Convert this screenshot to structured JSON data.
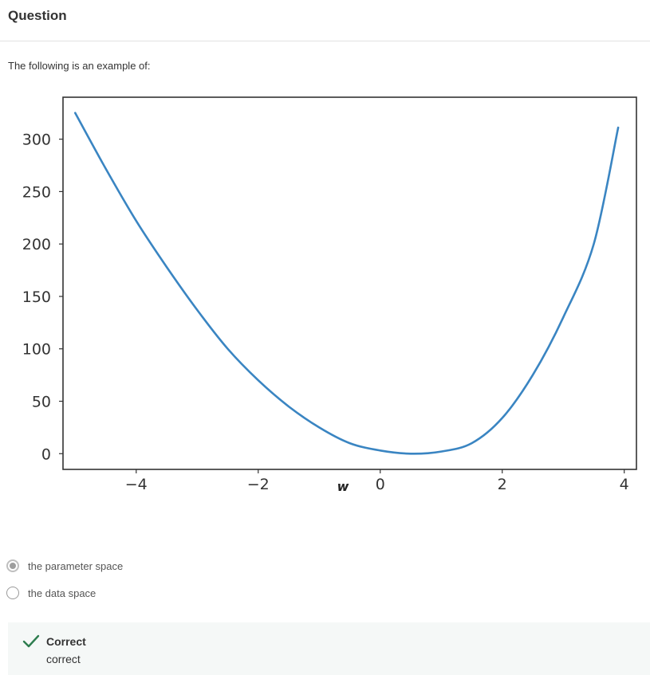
{
  "header": {
    "title": "Question"
  },
  "question": {
    "prompt": "The following is an example of:"
  },
  "options": [
    {
      "label": "the parameter space",
      "selected": true
    },
    {
      "label": "the data space",
      "selected": false
    }
  ],
  "feedback": {
    "status": "Correct",
    "message": "correct",
    "icon": "check-icon",
    "color": "#2e7d4f"
  },
  "chart_data": {
    "type": "line",
    "title": "",
    "xlabel": "w",
    "ylabel": "",
    "xlim": [
      -5.2,
      4.2
    ],
    "ylim": [
      -15,
      340
    ],
    "xticks": [
      -4,
      -2,
      0,
      2,
      4
    ],
    "xtick_labels": [
      "−4",
      "−2",
      "0",
      "2",
      "4"
    ],
    "yticks": [
      0,
      50,
      100,
      150,
      200,
      250,
      300
    ],
    "ytick_labels": [
      "0",
      "50",
      "100",
      "150",
      "200",
      "250",
      "300"
    ],
    "grid": false,
    "series": [
      {
        "color": "#3a85c2",
        "x": [
          -5.0,
          -4.5,
          -4.0,
          -3.5,
          -3.0,
          -2.5,
          -2.0,
          -1.5,
          -1.0,
          -0.5,
          0.0,
          0.5,
          1.0,
          1.5,
          2.0,
          2.5,
          3.0,
          3.5,
          3.9
        ],
        "y": [
          325,
          272,
          222,
          178,
          137,
          100,
          70,
          45,
          25,
          10,
          3,
          0,
          2,
          10,
          34,
          75,
          130,
          200,
          311
        ]
      }
    ]
  }
}
